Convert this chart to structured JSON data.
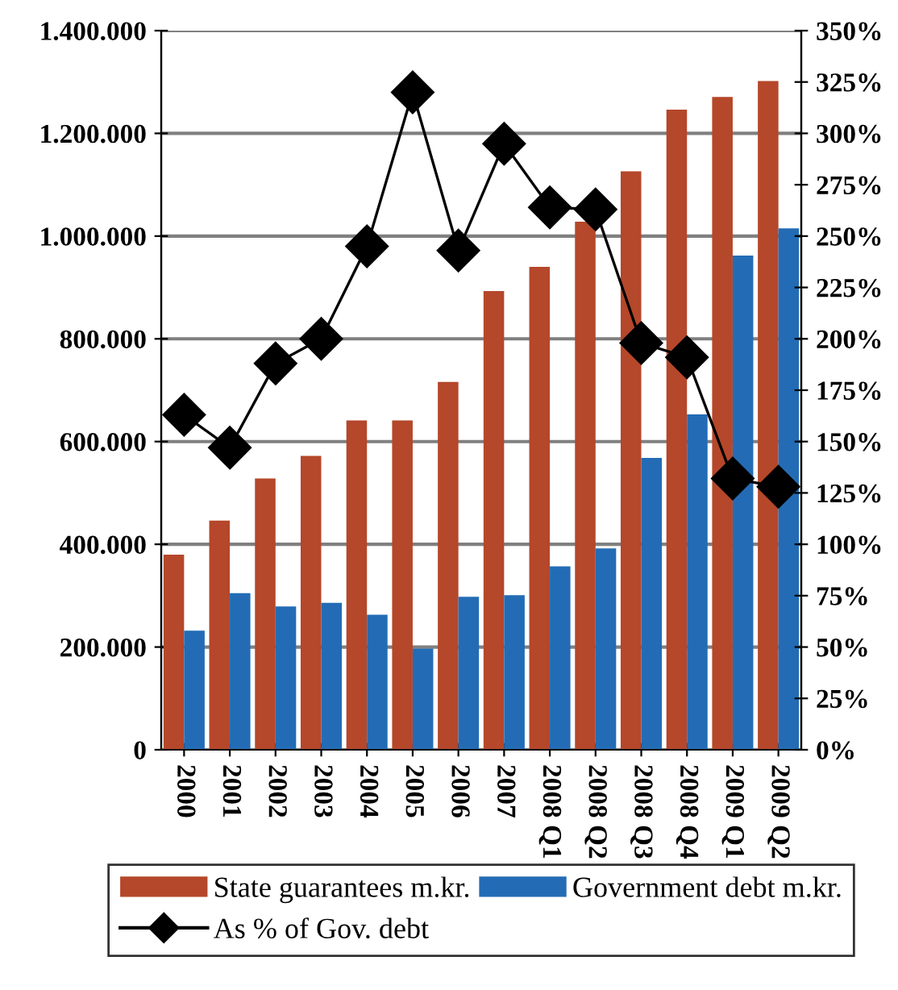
{
  "chart_data": {
    "type": "bar",
    "categories": [
      "2000",
      "2001",
      "2002",
      "2003",
      "2004",
      "2005",
      "2006",
      "2007",
      "2008 Q1",
      "2008 Q2",
      "2008 Q3",
      "2008 Q4",
      "2009 Q1",
      "2009 Q2"
    ],
    "series": [
      {
        "name": "State guarantees m.kr.",
        "color": "#b5472a",
        "values": [
          380000,
          446000,
          528000,
          572000,
          641000,
          641000,
          716000,
          893000,
          940000,
          1028000,
          1126000,
          1246000,
          1271000,
          1302000
        ]
      },
      {
        "name": "Government debt m.kr.",
        "color": "#236cb5",
        "values": [
          232000,
          305000,
          279000,
          286000,
          263000,
          197000,
          298000,
          301000,
          357000,
          392000,
          568000,
          653000,
          962000,
          1015000
        ]
      },
      {
        "name": "As % of Gov. debt",
        "color": "#000000",
        "type": "line",
        "axis": "y2",
        "marker": "diamond",
        "values": [
          163,
          147,
          188,
          200,
          245,
          320,
          243,
          295,
          264,
          263,
          198,
          191,
          132,
          128
        ]
      }
    ],
    "ylim": [
      0,
      1400000
    ],
    "yticks": [
      0,
      {
        "value": 200000,
        "label": "200.000"
      },
      {
        "value": 400000,
        "label": "400.000"
      },
      {
        "value": 600000,
        "label": "600.000"
      },
      {
        "value": 800000,
        "label": "800.000"
      },
      {
        "value": 1000000,
        "label": "1.000.000"
      },
      {
        "value": 1200000,
        "label": "1.200.000"
      },
      {
        "value": 1400000,
        "label": "1.400.000"
      }
    ],
    "y2lim": [
      0,
      350
    ],
    "y2ticks": [
      {
        "value": 0,
        "label": "0%"
      },
      {
        "value": 25,
        "label": "25%"
      },
      {
        "value": 50,
        "label": "50%"
      },
      {
        "value": 75,
        "label": "75%"
      },
      {
        "value": 100,
        "label": "100%"
      },
      {
        "value": 125,
        "label": "125%"
      },
      {
        "value": 150,
        "label": "150%"
      },
      {
        "value": 175,
        "label": "175%"
      },
      {
        "value": 200,
        "label": "200%"
      },
      {
        "value": 225,
        "label": "225%"
      },
      {
        "value": 250,
        "label": "250%"
      },
      {
        "value": 275,
        "label": "275%"
      },
      {
        "value": 300,
        "label": "300%"
      },
      {
        "value": 325,
        "label": "325%"
      },
      {
        "value": 350,
        "label": "350%"
      }
    ],
    "grid": "y",
    "legend": "bottom"
  }
}
